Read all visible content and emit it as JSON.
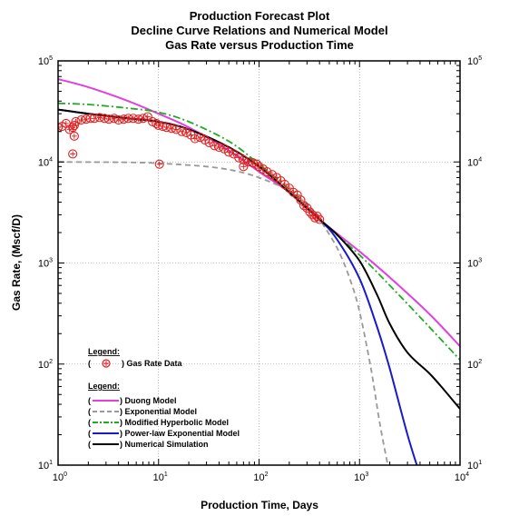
{
  "chart_data": {
    "type": "line",
    "title": [
      "Production Forecast Plot",
      "Decline Curve Relations and Numerical Model",
      "Gas Rate versus Production Time"
    ],
    "xlabel": "Production Time, Days",
    "ylabel": "Gas Rate, (Mscf/D)",
    "x_scale": "log",
    "y_scale": "log",
    "xlim": [
      1,
      10000
    ],
    "ylim": [
      10,
      100000
    ],
    "grid": true,
    "x_ticks": [
      {
        "base": "10",
        "exp": "0"
      },
      {
        "base": "10",
        "exp": "1"
      },
      {
        "base": "10",
        "exp": "2"
      },
      {
        "base": "10",
        "exp": "3"
      },
      {
        "base": "10",
        "exp": "4"
      }
    ],
    "y_ticks": [
      {
        "base": "10",
        "exp": "1"
      },
      {
        "base": "10",
        "exp": "2"
      },
      {
        "base": "10",
        "exp": "3"
      },
      {
        "base": "10",
        "exp": "4"
      },
      {
        "base": "10",
        "exp": "5"
      }
    ],
    "legend_data": {
      "heading": "Legend:",
      "label": "Gas Rate Data"
    },
    "legend_models": {
      "heading": "Legend:"
    },
    "series": [
      {
        "name": "Duong Model",
        "color": "#e040e0",
        "dash": "solid",
        "x": [
          1,
          2,
          5,
          10,
          20,
          50,
          100,
          200,
          400,
          1000,
          2000,
          5000,
          10000
        ],
        "y": [
          66000,
          55000,
          40000,
          30000,
          22000,
          13000,
          8000,
          5000,
          2700,
          1300,
          720,
          310,
          150
        ]
      },
      {
        "name": "Exponential Model",
        "color": "#999999",
        "dash": "dashed",
        "x": [
          1,
          5,
          10,
          30,
          60,
          100,
          200,
          300,
          400,
          600,
          800,
          1000,
          1300,
          1600,
          2000
        ],
        "y": [
          10000,
          9900,
          9700,
          9000,
          8100,
          7000,
          5200,
          3800,
          2700,
          1400,
          700,
          330,
          90,
          25,
          8
        ]
      },
      {
        "name": "Modified Hyperbolic Model",
        "color": "#22aa22",
        "dash": "dashdot",
        "x": [
          1,
          2,
          5,
          10,
          20,
          50,
          100,
          200,
          400,
          1000,
          2000,
          5000,
          10000
        ],
        "y": [
          38000,
          37000,
          34000,
          31000,
          25000,
          16000,
          9500,
          5300,
          2700,
          1200,
          600,
          230,
          110
        ]
      },
      {
        "name": "Power-law Exponential Model",
        "color": "#1a1acc",
        "dash": "solid",
        "x": [
          1,
          2,
          5,
          10,
          20,
          50,
          100,
          200,
          400,
          600,
          1000,
          1500,
          2000,
          3000,
          4000
        ],
        "y": [
          33000,
          30000,
          27000,
          25000,
          21000,
          14000,
          9000,
          5000,
          2700,
          1700,
          700,
          230,
          90,
          20,
          8
        ]
      },
      {
        "name": "Numerical Simulation",
        "color": "#000000",
        "dash": "solid",
        "x": [
          1,
          2,
          5,
          10,
          20,
          50,
          100,
          200,
          400,
          600,
          1000,
          1500,
          2000,
          3000,
          5000,
          7000,
          10000
        ],
        "y": [
          33000,
          30000,
          27000,
          25000,
          21000,
          14000,
          9000,
          5000,
          2700,
          1900,
          1050,
          480,
          250,
          130,
          80,
          55,
          36
        ]
      }
    ],
    "scatter": {
      "name": "Gas Rate Data",
      "color": "#e02020",
      "x": [
        1.0,
        1.1,
        1.2,
        1.3,
        1.4,
        1.45,
        1.5,
        1.7,
        1.9,
        2.1,
        2.3,
        2.6,
        2.9,
        3.2,
        3.6,
        4.0,
        4.5,
        5.0,
        5.6,
        6.3,
        7.0,
        7.8,
        8.7,
        9.5,
        10,
        11,
        12,
        13.5,
        15,
        17,
        19,
        21,
        23,
        26,
        29,
        32,
        36,
        40,
        45,
        50,
        56,
        63,
        70,
        78,
        87,
        95,
        100,
        110,
        120,
        135,
        150,
        165,
        180,
        200,
        220,
        240,
        260,
        280,
        300,
        320,
        340,
        360,
        380,
        400,
        1.4,
        1.45,
        10.2,
        70
      ],
      "y": [
        22000,
        22500,
        24000,
        21000,
        22000,
        23000,
        25000,
        26000,
        26500,
        27000,
        27000,
        27500,
        27000,
        26500,
        27000,
        26000,
        26500,
        27000,
        27000,
        26500,
        27000,
        28000,
        25000,
        24000,
        23000,
        22500,
        22000,
        21500,
        21000,
        20000,
        19500,
        18500,
        17000,
        17500,
        16500,
        15500,
        14500,
        14000,
        13500,
        12500,
        12000,
        11000,
        10500,
        10000,
        9800,
        9500,
        9000,
        8500,
        8000,
        7500,
        7000,
        6500,
        6000,
        5500,
        5000,
        4700,
        4200,
        3700,
        3500,
        3200,
        3000,
        2800,
        2900,
        2700,
        12000,
        18000,
        9500,
        9000
      ]
    }
  }
}
